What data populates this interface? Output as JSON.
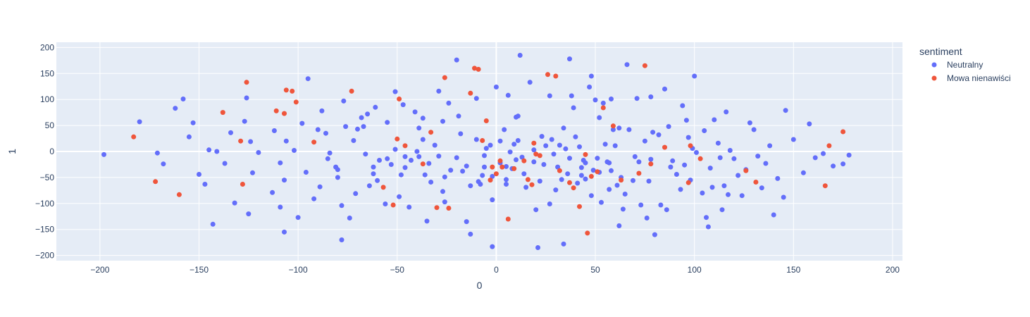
{
  "chart_data": {
    "type": "scatter",
    "title": "",
    "xlabel": "0",
    "ylabel": "1",
    "xlim": [
      -222,
      205
    ],
    "ylim": [
      -210,
      210
    ],
    "x_ticks": [
      -200,
      -150,
      -100,
      -50,
      0,
      50,
      100,
      150,
      200
    ],
    "y_ticks": [
      -200,
      -150,
      -100,
      -50,
      0,
      50,
      100,
      150,
      200
    ],
    "grid": true,
    "legend_title": "sentiment",
    "legend_position": "top-right",
    "series": [
      {
        "name": "Neutralny",
        "color": "#636efa",
        "points": [
          [
            -198,
            -6
          ],
          [
            -180,
            57
          ],
          [
            -171,
            -3
          ],
          [
            -168,
            -24
          ],
          [
            -162,
            83
          ],
          [
            -158,
            101
          ],
          [
            -155,
            28
          ],
          [
            -153,
            55
          ],
          [
            -150,
            -44
          ],
          [
            -147,
            -63
          ],
          [
            -145,
            3
          ],
          [
            -143,
            -140
          ],
          [
            -141,
            0
          ],
          [
            -137,
            -23
          ],
          [
            -134,
            36
          ],
          [
            -132,
            -99
          ],
          [
            -127,
            58
          ],
          [
            -126,
            103
          ],
          [
            -125,
            -120
          ],
          [
            -124,
            19
          ],
          [
            -123,
            -41
          ],
          [
            -120,
            -2
          ],
          [
            -113,
            -79
          ],
          [
            -112,
            40
          ],
          [
            -109,
            -22
          ],
          [
            -109,
            -107
          ],
          [
            -107,
            -55
          ],
          [
            -107,
            -155
          ],
          [
            -106,
            20
          ],
          [
            -102,
            2
          ],
          [
            -100,
            -127
          ],
          [
            -98,
            54
          ],
          [
            -96,
            -40
          ],
          [
            -95,
            140
          ],
          [
            -92,
            -91
          ],
          [
            -90,
            42
          ],
          [
            -89,
            -68
          ],
          [
            -88,
            78
          ],
          [
            -86,
            35
          ],
          [
            -85,
            -14
          ],
          [
            -84,
            -3
          ],
          [
            -81,
            -30
          ],
          [
            -80,
            -50
          ],
          [
            -80,
            -35
          ],
          [
            -78,
            -104
          ],
          [
            -78,
            -170
          ],
          [
            -77,
            97
          ],
          [
            -76,
            48
          ],
          [
            -74,
            -128
          ],
          [
            -72,
            21
          ],
          [
            -71,
            -81
          ],
          [
            -70,
            43
          ],
          [
            -68,
            65
          ],
          [
            -67,
            48
          ],
          [
            -66,
            -5
          ],
          [
            -65,
            72
          ],
          [
            -64,
            -66
          ],
          [
            -62,
            -30
          ],
          [
            -62,
            -43
          ],
          [
            -61,
            85
          ],
          [
            -60,
            -56
          ],
          [
            -59,
            -17
          ],
          [
            -56,
            -101
          ],
          [
            -55,
            56
          ],
          [
            -55,
            -14
          ],
          [
            -53,
            -25
          ],
          [
            -51,
            4
          ],
          [
            -51,
            115
          ],
          [
            -49,
            -87
          ],
          [
            -48,
            -45
          ],
          [
            -47,
            90
          ],
          [
            -46,
            -31
          ],
          [
            -46,
            -10
          ],
          [
            -44,
            -107
          ],
          [
            -43,
            -17
          ],
          [
            -41,
            76
          ],
          [
            -40,
            0
          ],
          [
            -39,
            -10
          ],
          [
            -39,
            45
          ],
          [
            -37,
            64
          ],
          [
            -37,
            23
          ],
          [
            -36,
            -45
          ],
          [
            -35,
            -134
          ],
          [
            -34,
            -23
          ],
          [
            -33,
            -59
          ],
          [
            -31,
            12
          ],
          [
            -29,
            116
          ],
          [
            -29,
            -9
          ],
          [
            -27,
            -77
          ],
          [
            -27,
            58
          ],
          [
            -26,
            -49
          ],
          [
            -26,
            -97
          ],
          [
            -24,
            93
          ],
          [
            -23,
            -36
          ],
          [
            -20,
            176
          ],
          [
            -20,
            -12
          ],
          [
            -19,
            68
          ],
          [
            -18,
            34
          ],
          [
            -17,
            -38
          ],
          [
            -15,
            -28
          ],
          [
            -15,
            -135
          ],
          [
            -13,
            -159
          ],
          [
            -13,
            -66
          ],
          [
            -10,
            23
          ],
          [
            -10,
            102
          ],
          [
            -9,
            -58
          ],
          [
            -8,
            -63
          ],
          [
            -7,
            -46
          ],
          [
            -6,
            -30
          ],
          [
            -6,
            -8
          ],
          [
            -5,
            6
          ],
          [
            -3,
            12
          ],
          [
            -2,
            -93
          ],
          [
            -2,
            -183
          ],
          [
            -2,
            -48
          ],
          [
            0,
            124
          ],
          [
            2,
            -22
          ],
          [
            2,
            20
          ],
          [
            4,
            42
          ],
          [
            5,
            -54
          ],
          [
            5,
            -29
          ],
          [
            5,
            -63
          ],
          [
            6,
            108
          ],
          [
            7,
            -1
          ],
          [
            8,
            -33
          ],
          [
            9,
            14
          ],
          [
            10,
            66
          ],
          [
            10,
            -16
          ],
          [
            11,
            68
          ],
          [
            11,
            21
          ],
          [
            12,
            185
          ],
          [
            13,
            -11
          ],
          [
            14,
            -43
          ],
          [
            15,
            -69
          ],
          [
            17,
            133
          ],
          [
            19,
            -20
          ],
          [
            19,
            3
          ],
          [
            20,
            -112
          ],
          [
            21,
            -185
          ],
          [
            22,
            -57
          ],
          [
            23,
            29
          ],
          [
            24,
            -25
          ],
          [
            25,
            11
          ],
          [
            27,
            107
          ],
          [
            27,
            -101
          ],
          [
            28,
            23
          ],
          [
            29,
            -5
          ],
          [
            30,
            -74
          ],
          [
            31,
            -30
          ],
          [
            32,
            12
          ],
          [
            33,
            -54
          ],
          [
            34,
            45
          ],
          [
            34,
            -178
          ],
          [
            35,
            5
          ],
          [
            36,
            -43
          ],
          [
            37,
            -13
          ],
          [
            37,
            178
          ],
          [
            38,
            107
          ],
          [
            39,
            84
          ],
          [
            40,
            28
          ],
          [
            41,
            -61
          ],
          [
            42,
            9
          ],
          [
            43,
            -46
          ],
          [
            43,
            -31
          ],
          [
            44,
            -17
          ],
          [
            45,
            -22
          ],
          [
            45,
            -53
          ],
          [
            47,
            124
          ],
          [
            48,
            145
          ],
          [
            48,
            -85
          ],
          [
            49,
            -36
          ],
          [
            50,
            99
          ],
          [
            51,
            -13
          ],
          [
            52,
            -40
          ],
          [
            52,
            65
          ],
          [
            53,
            -98
          ],
          [
            54,
            93
          ],
          [
            55,
            14
          ],
          [
            56,
            -20
          ],
          [
            57,
            -22
          ],
          [
            57,
            -73
          ],
          [
            58,
            101
          ],
          [
            58,
            -37
          ],
          [
            59,
            42
          ],
          [
            60,
            11
          ],
          [
            61,
            -65
          ],
          [
            62,
            45
          ],
          [
            62,
            -143
          ],
          [
            63,
            -50
          ],
          [
            64,
            -111
          ],
          [
            65,
            -82
          ],
          [
            66,
            167
          ],
          [
            67,
            42
          ],
          [
            69,
            -56
          ],
          [
            70,
            -10
          ],
          [
            71,
            102
          ],
          [
            72,
            -20
          ],
          [
            73,
            -103
          ],
          [
            75,
            20
          ],
          [
            76,
            -128
          ],
          [
            77,
            -57
          ],
          [
            78,
            105
          ],
          [
            78,
            -15
          ],
          [
            79,
            37
          ],
          [
            80,
            -160
          ],
          [
            82,
            32
          ],
          [
            83,
            -103
          ],
          [
            85,
            120
          ],
          [
            86,
            -112
          ],
          [
            87,
            48
          ],
          [
            88,
            -30
          ],
          [
            89,
            -18
          ],
          [
            91,
            -44
          ],
          [
            93,
            -73
          ],
          [
            94,
            88
          ],
          [
            95,
            -26
          ],
          [
            96,
            60
          ],
          [
            97,
            27
          ],
          [
            98,
            -55
          ],
          [
            99,
            6
          ],
          [
            100,
            145
          ],
          [
            101,
            -2
          ],
          [
            104,
            -80
          ],
          [
            105,
            40
          ],
          [
            106,
            -127
          ],
          [
            107,
            -145
          ],
          [
            108,
            -32
          ],
          [
            109,
            -69
          ],
          [
            110,
            61
          ],
          [
            112,
            16
          ],
          [
            113,
            -12
          ],
          [
            114,
            -112
          ],
          [
            115,
            -66
          ],
          [
            116,
            76
          ],
          [
            117,
            -83
          ],
          [
            118,
            2
          ],
          [
            120,
            -14
          ],
          [
            122,
            -46
          ],
          [
            124,
            -85
          ],
          [
            126,
            -35
          ],
          [
            128,
            55
          ],
          [
            130,
            42
          ],
          [
            132,
            -9
          ],
          [
            134,
            -70
          ],
          [
            136,
            -23
          ],
          [
            138,
            11
          ],
          [
            140,
            -122
          ],
          [
            142,
            -52
          ],
          [
            145,
            -88
          ],
          [
            146,
            79
          ],
          [
            150,
            23
          ],
          [
            155,
            -41
          ],
          [
            158,
            53
          ],
          [
            161,
            -12
          ],
          [
            165,
            -4
          ],
          [
            170,
            -28
          ],
          [
            175,
            -24
          ],
          [
            178,
            -7
          ]
        ]
      },
      {
        "name": "Mowa nienawiści",
        "color": "#ef553b",
        "points": [
          [
            -183,
            28
          ],
          [
            -172,
            -58
          ],
          [
            -160,
            -83
          ],
          [
            -138,
            75
          ],
          [
            -129,
            20
          ],
          [
            -128,
            -63
          ],
          [
            -126,
            133
          ],
          [
            -111,
            78
          ],
          [
            -107,
            73
          ],
          [
            -106,
            118
          ],
          [
            -103,
            116
          ],
          [
            -101,
            95
          ],
          [
            -92,
            18
          ],
          [
            -73,
            116
          ],
          [
            -57,
            -69
          ],
          [
            -52,
            -103
          ],
          [
            -50,
            24
          ],
          [
            -49,
            101
          ],
          [
            -46,
            11
          ],
          [
            -37,
            -24
          ],
          [
            -33,
            37
          ],
          [
            -30,
            -108
          ],
          [
            -26,
            142
          ],
          [
            -24,
            -109
          ],
          [
            -13,
            112
          ],
          [
            -11,
            160
          ],
          [
            -9,
            158
          ],
          [
            -7,
            21
          ],
          [
            -5,
            59
          ],
          [
            -3,
            -55
          ],
          [
            -2,
            -30
          ],
          [
            0,
            -43
          ],
          [
            2,
            -18
          ],
          [
            3,
            -30
          ],
          [
            6,
            -130
          ],
          [
            9,
            -33
          ],
          [
            14,
            -18
          ],
          [
            16,
            -54
          ],
          [
            18,
            -64
          ],
          [
            19,
            16
          ],
          [
            20,
            -5
          ],
          [
            22,
            -8
          ],
          [
            26,
            148
          ],
          [
            30,
            145
          ],
          [
            32,
            -37
          ],
          [
            37,
            -60
          ],
          [
            39,
            -70
          ],
          [
            42,
            -106
          ],
          [
            45,
            -6
          ],
          [
            46,
            -157
          ],
          [
            48,
            -48
          ],
          [
            51,
            -39
          ],
          [
            54,
            84
          ],
          [
            59,
            49
          ],
          [
            63,
            -55
          ],
          [
            72,
            -42
          ],
          [
            75,
            165
          ],
          [
            78,
            -24
          ],
          [
            85,
            8
          ],
          [
            97,
            -60
          ],
          [
            98,
            11
          ],
          [
            103,
            -14
          ],
          [
            126,
            -37
          ],
          [
            131,
            -59
          ],
          [
            166,
            -66
          ],
          [
            168,
            11
          ],
          [
            175,
            38
          ]
        ]
      }
    ]
  }
}
